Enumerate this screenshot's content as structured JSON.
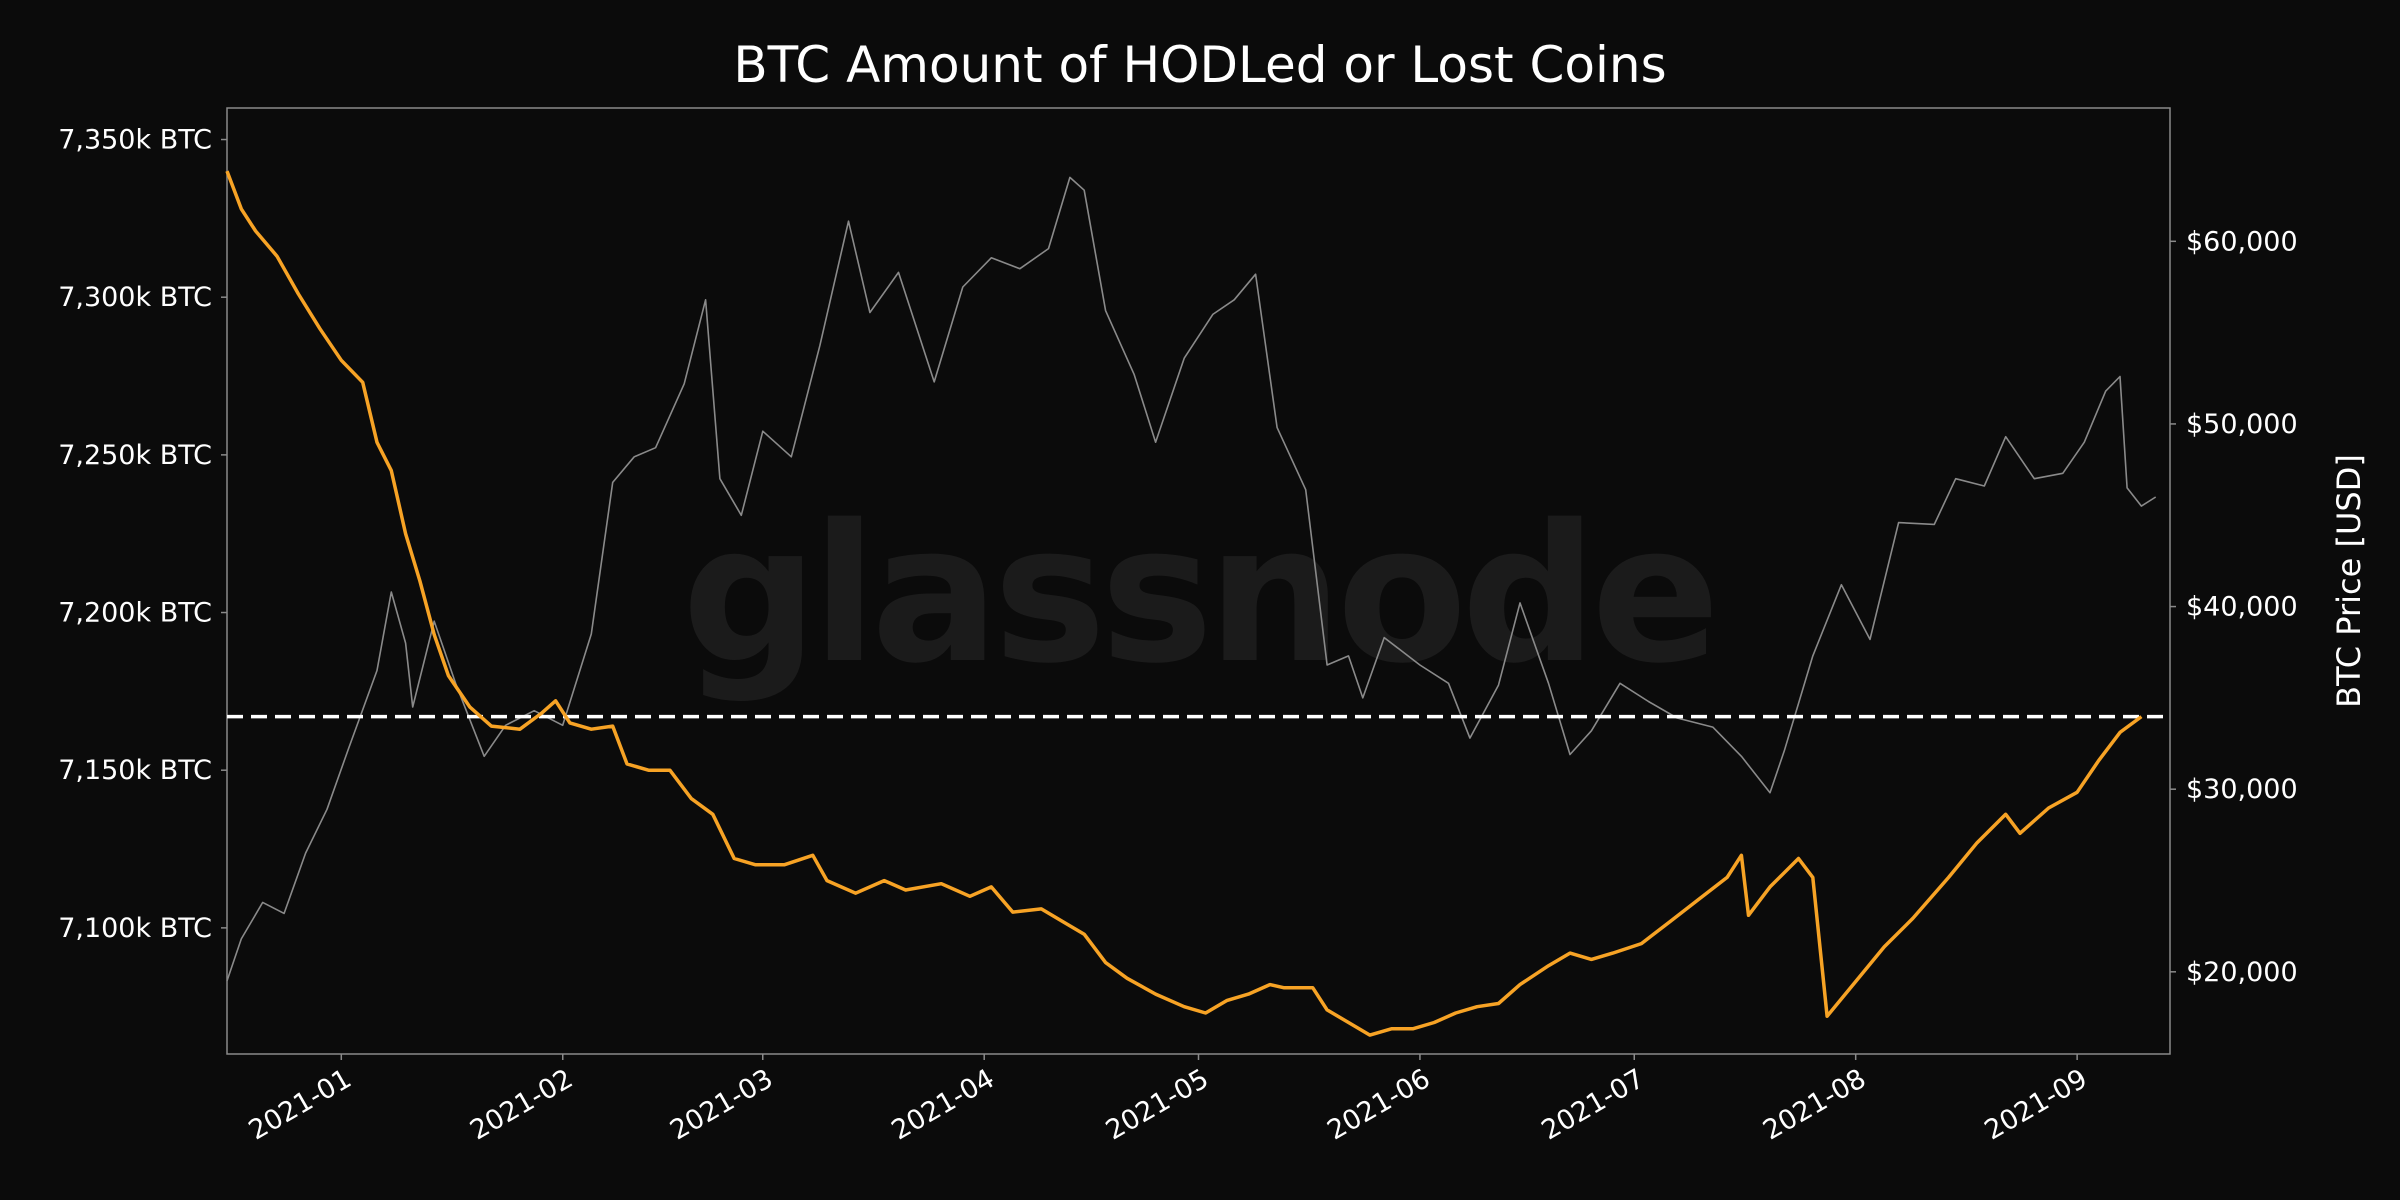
{
  "chart_data": {
    "type": "line",
    "title": "BTC Amount of HODLed or Lost Coins",
    "watermark": "glassnode",
    "xlabel": "",
    "ylabel_left": "",
    "ylabel_right": "BTC Price [USD]",
    "x_range": [
      "2020-12-16",
      "2021-09-14"
    ],
    "x_ticks": [
      {
        "date": "2021-01-01",
        "label": "2021-01"
      },
      {
        "date": "2021-02-01",
        "label": "2021-02"
      },
      {
        "date": "2021-03-01",
        "label": "2021-03"
      },
      {
        "date": "2021-04-01",
        "label": "2021-04"
      },
      {
        "date": "2021-05-01",
        "label": "2021-05"
      },
      {
        "date": "2021-06-01",
        "label": "2021-06"
      },
      {
        "date": "2021-07-01",
        "label": "2021-07"
      },
      {
        "date": "2021-08-01",
        "label": "2021-08"
      },
      {
        "date": "2021-09-01",
        "label": "2021-09"
      }
    ],
    "y_left": {
      "range": [
        7060,
        7360
      ],
      "unit": "k BTC",
      "ticks": [
        {
          "value": 7100,
          "label": "7,100k BTC"
        },
        {
          "value": 7150,
          "label": "7,150k BTC"
        },
        {
          "value": 7200,
          "label": "7,200k BTC"
        },
        {
          "value": 7250,
          "label": "7,250k BTC"
        },
        {
          "value": 7300,
          "label": "7,300k BTC"
        },
        {
          "value": 7350,
          "label": "7,350k BTC"
        }
      ]
    },
    "y_right": {
      "range": [
        15500,
        67300
      ],
      "unit": "USD",
      "ticks": [
        {
          "value": 20000,
          "label": "$20,000"
        },
        {
          "value": 30000,
          "label": "$30,000"
        },
        {
          "value": 40000,
          "label": "$40,000"
        },
        {
          "value": 50000,
          "label": "$50,000"
        },
        {
          "value": 60000,
          "label": "$60,000"
        }
      ]
    },
    "reference_line": {
      "axis": "left",
      "value": 7167,
      "style": "dashed",
      "color": "#ffffff"
    },
    "series": [
      {
        "name": "HODLed or Lost Coins",
        "axis": "left",
        "color": "#f7a325",
        "points": [
          [
            "2020-12-16",
            7340
          ],
          [
            "2020-12-18",
            7328
          ],
          [
            "2020-12-20",
            7321
          ],
          [
            "2020-12-23",
            7313
          ],
          [
            "2020-12-26",
            7301
          ],
          [
            "2020-12-29",
            7290
          ],
          [
            "2021-01-01",
            7280
          ],
          [
            "2021-01-04",
            7273
          ],
          [
            "2021-01-06",
            7254
          ],
          [
            "2021-01-08",
            7245
          ],
          [
            "2021-01-10",
            7225
          ],
          [
            "2021-01-12",
            7210
          ],
          [
            "2021-01-14",
            7193
          ],
          [
            "2021-01-16",
            7180
          ],
          [
            "2021-01-19",
            7170
          ],
          [
            "2021-01-22",
            7164
          ],
          [
            "2021-01-26",
            7163
          ],
          [
            "2021-01-29",
            7168
          ],
          [
            "2021-01-31",
            7172
          ],
          [
            "2021-02-02",
            7165
          ],
          [
            "2021-02-05",
            7163
          ],
          [
            "2021-02-08",
            7164
          ],
          [
            "2021-02-10",
            7152
          ],
          [
            "2021-02-13",
            7150
          ],
          [
            "2021-02-16",
            7150
          ],
          [
            "2021-02-19",
            7141
          ],
          [
            "2021-02-22",
            7136
          ],
          [
            "2021-02-25",
            7122
          ],
          [
            "2021-02-28",
            7120
          ],
          [
            "2021-03-04",
            7120
          ],
          [
            "2021-03-08",
            7123
          ],
          [
            "2021-03-10",
            7115
          ],
          [
            "2021-03-14",
            7111
          ],
          [
            "2021-03-18",
            7115
          ],
          [
            "2021-03-21",
            7112
          ],
          [
            "2021-03-26",
            7114
          ],
          [
            "2021-03-30",
            7110
          ],
          [
            "2021-04-02",
            7113
          ],
          [
            "2021-04-05",
            7105
          ],
          [
            "2021-04-09",
            7106
          ],
          [
            "2021-04-12",
            7102
          ],
          [
            "2021-04-15",
            7098
          ],
          [
            "2021-04-18",
            7089
          ],
          [
            "2021-04-21",
            7084
          ],
          [
            "2021-04-25",
            7079
          ],
          [
            "2021-04-29",
            7075
          ],
          [
            "2021-05-02",
            7073
          ],
          [
            "2021-05-05",
            7077
          ],
          [
            "2021-05-08",
            7079
          ],
          [
            "2021-05-11",
            7082
          ],
          [
            "2021-05-13",
            7081
          ],
          [
            "2021-05-17",
            7081
          ],
          [
            "2021-05-19",
            7074
          ],
          [
            "2021-05-22",
            7070
          ],
          [
            "2021-05-25",
            7066
          ],
          [
            "2021-05-28",
            7068
          ],
          [
            "2021-05-31",
            7068
          ],
          [
            "2021-06-03",
            7070
          ],
          [
            "2021-06-06",
            7073
          ],
          [
            "2021-06-09",
            7075
          ],
          [
            "2021-06-12",
            7076
          ],
          [
            "2021-06-15",
            7082
          ],
          [
            "2021-06-19",
            7088
          ],
          [
            "2021-06-22",
            7092
          ],
          [
            "2021-06-25",
            7090
          ],
          [
            "2021-06-28",
            7092
          ],
          [
            "2021-07-02",
            7095
          ],
          [
            "2021-07-06",
            7102
          ],
          [
            "2021-07-10",
            7109
          ],
          [
            "2021-07-14",
            7116
          ],
          [
            "2021-07-16",
            7123
          ],
          [
            "2021-07-17",
            7104
          ],
          [
            "2021-07-20",
            7113
          ],
          [
            "2021-07-24",
            7122
          ],
          [
            "2021-07-26",
            7116
          ],
          [
            "2021-07-28",
            7072
          ],
          [
            "2021-08-01",
            7083
          ],
          [
            "2021-08-05",
            7094
          ],
          [
            "2021-08-09",
            7103
          ],
          [
            "2021-08-14",
            7116
          ],
          [
            "2021-08-18",
            7127
          ],
          [
            "2021-08-22",
            7136
          ],
          [
            "2021-08-24",
            7130
          ],
          [
            "2021-08-28",
            7138
          ],
          [
            "2021-09-01",
            7143
          ],
          [
            "2021-09-04",
            7153
          ],
          [
            "2021-09-07",
            7162
          ],
          [
            "2021-09-10",
            7167
          ]
        ]
      },
      {
        "name": "BTC Price [USD]",
        "axis": "right",
        "color": "#8a8a8a",
        "points": [
          [
            "2020-12-16",
            19500
          ],
          [
            "2020-12-18",
            21800
          ],
          [
            "2020-12-21",
            23800
          ],
          [
            "2020-12-24",
            23200
          ],
          [
            "2020-12-27",
            26500
          ],
          [
            "2020-12-30",
            28900
          ],
          [
            "2021-01-02",
            32200
          ],
          [
            "2021-01-06",
            36500
          ],
          [
            "2021-01-08",
            40800
          ],
          [
            "2021-01-10",
            38000
          ],
          [
            "2021-01-11",
            34500
          ],
          [
            "2021-01-14",
            39200
          ],
          [
            "2021-01-17",
            35800
          ],
          [
            "2021-01-21",
            31800
          ],
          [
            "2021-01-24",
            33500
          ],
          [
            "2021-01-28",
            34300
          ],
          [
            "2021-02-01",
            33500
          ],
          [
            "2021-02-05",
            38500
          ],
          [
            "2021-02-08",
            46800
          ],
          [
            "2021-02-11",
            48200
          ],
          [
            "2021-02-14",
            48700
          ],
          [
            "2021-02-18",
            52200
          ],
          [
            "2021-02-21",
            56800
          ],
          [
            "2021-02-23",
            47000
          ],
          [
            "2021-02-26",
            45000
          ],
          [
            "2021-03-01",
            49600
          ],
          [
            "2021-03-05",
            48200
          ],
          [
            "2021-03-09",
            54300
          ],
          [
            "2021-03-13",
            61100
          ],
          [
            "2021-03-16",
            56100
          ],
          [
            "2021-03-20",
            58300
          ],
          [
            "2021-03-25",
            52300
          ],
          [
            "2021-03-29",
            57500
          ],
          [
            "2021-04-02",
            59100
          ],
          [
            "2021-04-06",
            58500
          ],
          [
            "2021-04-10",
            59600
          ],
          [
            "2021-04-13",
            63500
          ],
          [
            "2021-04-15",
            62800
          ],
          [
            "2021-04-18",
            56200
          ],
          [
            "2021-04-22",
            52700
          ],
          [
            "2021-04-25",
            49000
          ],
          [
            "2021-04-29",
            53600
          ],
          [
            "2021-05-03",
            56000
          ],
          [
            "2021-05-06",
            56800
          ],
          [
            "2021-05-09",
            58200
          ],
          [
            "2021-05-12",
            49800
          ],
          [
            "2021-05-16",
            46400
          ],
          [
            "2021-05-19",
            36800
          ],
          [
            "2021-05-22",
            37300
          ],
          [
            "2021-05-24",
            35000
          ],
          [
            "2021-05-27",
            38300
          ],
          [
            "2021-06-01",
            36800
          ],
          [
            "2021-06-05",
            35800
          ],
          [
            "2021-06-08",
            32800
          ],
          [
            "2021-06-12",
            35700
          ],
          [
            "2021-06-15",
            40200
          ],
          [
            "2021-06-19",
            35800
          ],
          [
            "2021-06-22",
            31900
          ],
          [
            "2021-06-25",
            33200
          ],
          [
            "2021-06-29",
            35800
          ],
          [
            "2021-07-03",
            34800
          ],
          [
            "2021-07-07",
            33900
          ],
          [
            "2021-07-12",
            33400
          ],
          [
            "2021-07-16",
            31800
          ],
          [
            "2021-07-20",
            29800
          ],
          [
            "2021-07-22",
            32100
          ],
          [
            "2021-07-26",
            37300
          ],
          [
            "2021-07-30",
            41200
          ],
          [
            "2021-08-03",
            38200
          ],
          [
            "2021-08-07",
            44600
          ],
          [
            "2021-08-12",
            44500
          ],
          [
            "2021-08-15",
            47000
          ],
          [
            "2021-08-19",
            46600
          ],
          [
            "2021-08-22",
            49300
          ],
          [
            "2021-08-26",
            47000
          ],
          [
            "2021-08-30",
            47300
          ],
          [
            "2021-09-02",
            49000
          ],
          [
            "2021-09-05",
            51800
          ],
          [
            "2021-09-07",
            52600
          ],
          [
            "2021-09-08",
            46500
          ],
          [
            "2021-09-10",
            45500
          ],
          [
            "2021-09-12",
            46000
          ]
        ]
      }
    ]
  }
}
